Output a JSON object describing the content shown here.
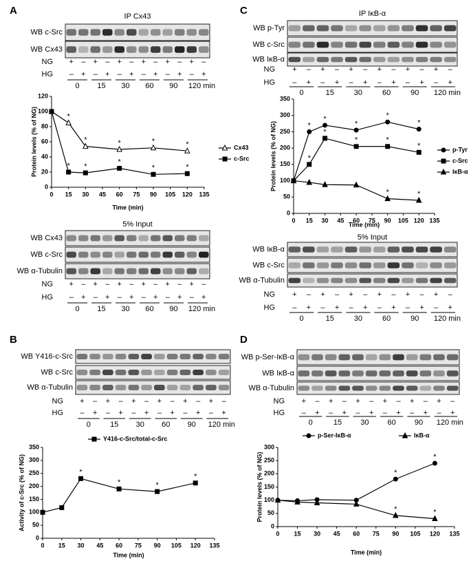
{
  "panel_labels": [
    "A",
    "C",
    "B",
    "D"
  ],
  "lanes": {
    "ng": "NG",
    "hg": "HG",
    "plus": "+",
    "minus": "–",
    "times": [
      "0",
      "15",
      "30",
      "60",
      "90",
      "120 min"
    ]
  },
  "blots": [
    {
      "header": "IP Cx43",
      "rows": [
        "WB c-Src",
        "WB Cx43"
      ]
    },
    {
      "header": "5% Input",
      "rows": [
        "WB Cx43",
        "WB c-Src",
        "WB α-Tubulin"
      ]
    },
    {
      "header": "IP IκB-α",
      "rows": [
        "WB p-Tyr",
        "WB c-Src",
        "WB IκB-α"
      ]
    },
    {
      "header": "5% Input",
      "rows": [
        "WB IκB-α",
        "WB c-Src",
        "WB α-Tubulin"
      ]
    },
    {
      "rows": [
        "WB Y416-c-Src",
        "WB c-Src",
        "WB α-Tubulin"
      ]
    },
    {
      "rows": [
        "WB p-Ser-IκB-α",
        "WB IκB-α",
        "WB α-Tubulin"
      ]
    }
  ],
  "chart_data": [
    {
      "type": "line",
      "xlabel": "Time (min)",
      "ylabel": "Protein levels (% of NG)",
      "x": [
        0,
        15,
        30,
        60,
        90,
        120
      ],
      "xlim": [
        0,
        135
      ],
      "xticks": [
        0,
        15,
        30,
        45,
        60,
        75,
        90,
        105,
        120,
        135
      ],
      "ylim": [
        0,
        120
      ],
      "yticks": [
        0,
        20,
        40,
        60,
        80,
        100,
        120
      ],
      "legend": "right",
      "star": "*",
      "series": [
        {
          "name": "Cx43",
          "color": "#000000",
          "marker": "triangle-open",
          "values": [
            100,
            85,
            54,
            50,
            52,
            48
          ],
          "star_x": [
            15,
            30,
            60,
            90,
            120
          ]
        },
        {
          "name": "c-Src",
          "color": "#000000",
          "marker": "square",
          "values": [
            100,
            20,
            19,
            25,
            17,
            18
          ],
          "star_x": [
            15,
            30,
            60,
            90,
            120
          ]
        }
      ]
    },
    {
      "type": "line",
      "xlabel": "Time (min)",
      "ylabel": "Protein levels (% of NG)",
      "x": [
        0,
        15,
        30,
        60,
        90,
        120
      ],
      "xlim": [
        0,
        135
      ],
      "xticks": [
        0,
        15,
        30,
        45,
        60,
        75,
        90,
        105,
        120,
        135
      ],
      "ylim": [
        0,
        350
      ],
      "yticks": [
        0,
        50,
        100,
        150,
        200,
        250,
        300,
        350
      ],
      "legend": "right",
      "star": "*",
      "series": [
        {
          "name": "p-Tyr",
          "color": "#000000",
          "marker": "circle",
          "values": [
            100,
            250,
            270,
            255,
            280,
            258
          ],
          "star_x": [
            15,
            30,
            60,
            90,
            120
          ]
        },
        {
          "name": "c-Src",
          "color": "#000000",
          "marker": "square",
          "values": [
            100,
            150,
            230,
            205,
            205,
            187
          ],
          "star_x": [
            15,
            30,
            60,
            90,
            120
          ]
        },
        {
          "name": "IκB-α",
          "color": "#000000",
          "marker": "triangle",
          "values": [
            100,
            95,
            88,
            87,
            45,
            40
          ],
          "star_x": [
            90,
            120
          ]
        }
      ]
    },
    {
      "type": "line",
      "xlabel": "Time (min)",
      "ylabel": "Activity of c-Src (% of NG)",
      "x": [
        0,
        15,
        30,
        60,
        90,
        120
      ],
      "xlim": [
        0,
        135
      ],
      "xticks": [
        0,
        15,
        30,
        45,
        60,
        75,
        90,
        105,
        120,
        135
      ],
      "ylim": [
        0,
        350
      ],
      "yticks": [
        0,
        50,
        100,
        150,
        200,
        250,
        300,
        350
      ],
      "legend": "top",
      "star": "*",
      "series": [
        {
          "name": "Y416-c-Src/total-c-Src",
          "color": "#000000",
          "marker": "square",
          "values": [
            100,
            118,
            230,
            190,
            180,
            213
          ],
          "star_x": [
            30,
            60,
            90,
            120
          ]
        }
      ]
    },
    {
      "type": "line",
      "xlabel": "Time (min)",
      "ylabel": "Protein levels (% of NG)",
      "x": [
        0,
        15,
        30,
        60,
        90,
        120
      ],
      "xlim": [
        0,
        135
      ],
      "xticks": [
        0,
        15,
        30,
        45,
        60,
        75,
        90,
        105,
        120,
        135
      ],
      "ylim": [
        0,
        300
      ],
      "yticks": [
        0,
        50,
        100,
        150,
        200,
        250,
        300
      ],
      "legend": "top",
      "star": "*",
      "series": [
        {
          "name": "p-Ser-IκB-α",
          "color": "#000000",
          "marker": "circle",
          "values": [
            100,
            98,
            102,
            100,
            180,
            240
          ],
          "star_x": [
            90,
            120
          ]
        },
        {
          "name": "IκB-α",
          "color": "#000000",
          "marker": "triangle",
          "values": [
            100,
            93,
            90,
            85,
            42,
            30
          ],
          "star_x": [
            90,
            120
          ]
        }
      ]
    }
  ]
}
